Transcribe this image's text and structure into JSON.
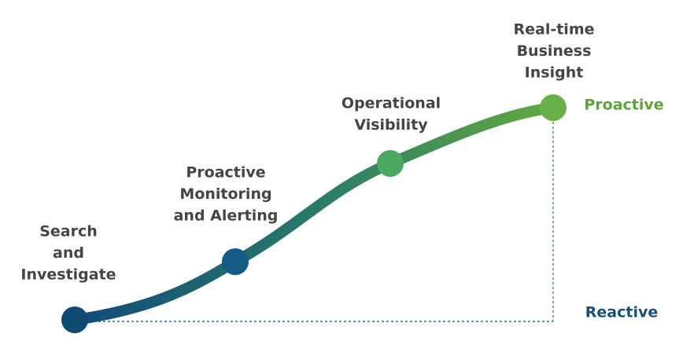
{
  "nodes": [
    {
      "label": [
        "Search",
        "and",
        "Investigate"
      ]
    },
    {
      "label": [
        "Proactive",
        "Monitoring",
        "and Alerting"
      ]
    },
    {
      "label": [
        "Operational",
        "Visibility"
      ]
    },
    {
      "label": [
        "Real-time",
        "Business",
        "Insight"
      ]
    }
  ],
  "axis": {
    "top": "Proactive",
    "bottom": "Reactive"
  }
}
